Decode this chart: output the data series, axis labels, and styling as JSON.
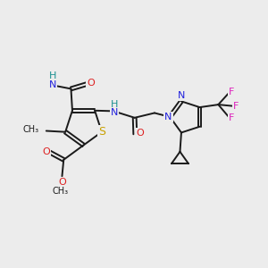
{
  "background_color": "#ececec",
  "bond_color": "#1a1a1a",
  "atom_colors": {
    "H": "#1a9090",
    "N": "#2020dd",
    "O": "#dd2020",
    "S": "#c8a000",
    "F": "#dd20bb",
    "C": "#1a1a1a"
  },
  "font_size": 8,
  "figsize": [
    3.0,
    3.0
  ],
  "dpi": 100
}
